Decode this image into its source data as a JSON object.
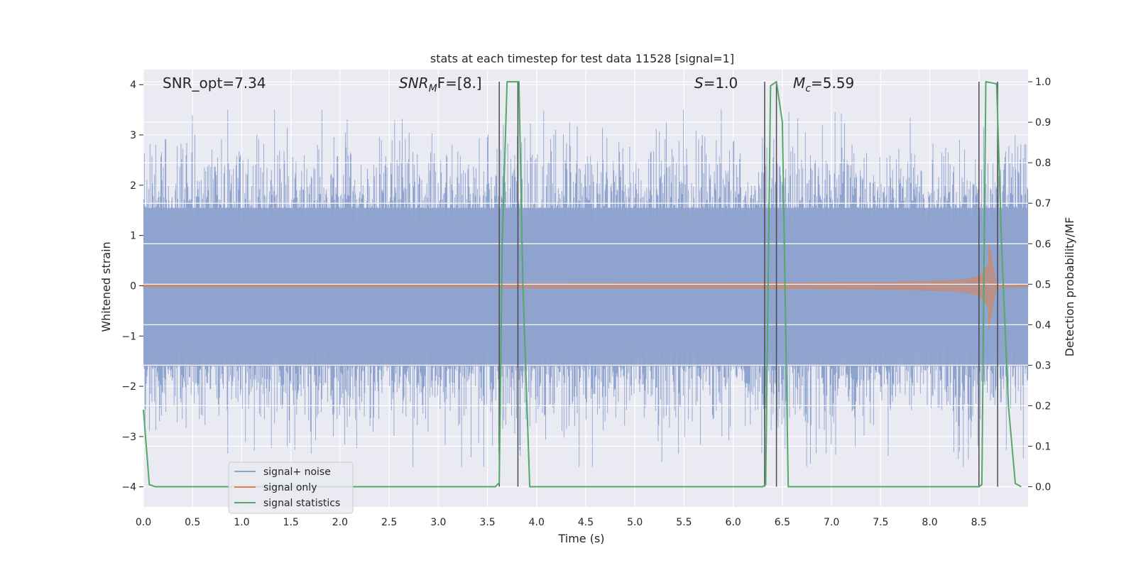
{
  "chart_data": {
    "type": "line",
    "title": "stats at each timestep for test data 11528 [signal=1]",
    "xlabel": "Time (s)",
    "ylabel_left": "Whitened strain",
    "ylabel_right": "Detection probability/MF",
    "xlim": [
      0.0,
      9.0
    ],
    "ylim_left": [
      -4.4,
      4.3
    ],
    "ylim_right": [
      -0.05,
      1.03
    ],
    "x_ticks": [
      "0.0",
      "0.5",
      "1.0",
      "1.5",
      "2.0",
      "2.5",
      "3.0",
      "3.5",
      "4.0",
      "4.5",
      "5.0",
      "5.5",
      "6.0",
      "6.5",
      "7.0",
      "7.5",
      "8.0",
      "8.5"
    ],
    "y_ticks_left": [
      "−4",
      "−3",
      "−2",
      "−1",
      "0",
      "1",
      "2",
      "3",
      "4"
    ],
    "y_ticks_right": [
      "0.0",
      "0.1",
      "0.2",
      "0.3",
      "0.4",
      "0.5",
      "0.6",
      "0.7",
      "0.8",
      "0.9",
      "1.0"
    ],
    "grid": true,
    "legend_placement": "lower-left",
    "annotations": {
      "snr_opt": "SNR_opt=7.34",
      "snr_mf_base": "SNR",
      "snr_mf_sub": "M",
      "snr_mf_rest": "F=[8.]",
      "s_italic": "S",
      "s_rest": "=1.0",
      "mc_base": "M",
      "mc_sub": "c",
      "mc_rest": "=5.59"
    },
    "series": [
      {
        "name": "signal+ noise",
        "color": "#8fa3cf",
        "kind": "noise",
        "amplitude_envelope": [
          -3.6,
          3.5
        ]
      },
      {
        "name": "signal only",
        "color": "#dd8452",
        "kind": "chirp",
        "start_x": 3.6,
        "merger_x": 8.6,
        "peak_amplitude": 0.85
      },
      {
        "name": "signal statistics",
        "color": "#55a868",
        "x": [
          0.0,
          0.06,
          0.12,
          3.58,
          3.62,
          3.65,
          3.7,
          3.82,
          3.86,
          3.93,
          6.3,
          6.33,
          6.38,
          6.44,
          6.5,
          6.56,
          8.5,
          8.53,
          8.57,
          8.68,
          8.73,
          8.8,
          8.87,
          8.93
        ],
        "values": [
          0.19,
          0.005,
          0.0,
          0.0,
          0.01,
          0.6,
          1.0,
          1.0,
          0.5,
          0.0,
          0.0,
          0.005,
          0.99,
          1.0,
          0.9,
          0.0,
          0.0,
          0.005,
          1.0,
          0.995,
          0.6,
          0.2,
          0.008,
          0.0
        ]
      }
    ],
    "vertical_markers_x": [
      3.62,
      3.81,
      6.32,
      6.44,
      8.5,
      8.69
    ]
  }
}
